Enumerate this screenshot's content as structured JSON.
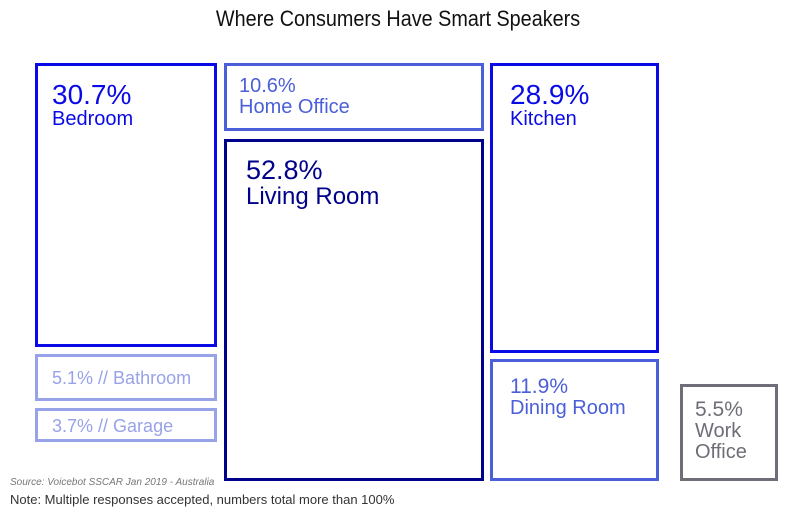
{
  "chart_data": {
    "type": "treemap",
    "title": "Where Consumers Have Smart Speakers",
    "unit": "%",
    "items": [
      {
        "key": "bedroom",
        "value_text": "30.7%",
        "label": "Bedroom",
        "value": 30.7,
        "color": "#0a0ae6"
      },
      {
        "key": "bathroom",
        "value_text": "5.1%",
        "label": "Bathroom",
        "value": 5.1,
        "color": "#98a2e8",
        "inline": true
      },
      {
        "key": "garage",
        "value_text": "3.7%",
        "label": "Garage",
        "value": 3.7,
        "color": "#98a2e8",
        "inline": true
      },
      {
        "key": "home_office",
        "value_text": "10.6%",
        "label": "Home Office",
        "value": 10.6,
        "color": "#4a5fd8"
      },
      {
        "key": "living_room",
        "value_text": "52.8%",
        "label": "Living Room",
        "value": 52.8,
        "color": "#00008b"
      },
      {
        "key": "kitchen",
        "value_text": "28.9%",
        "label": "Kitchen",
        "value": 28.9,
        "color": "#0a0ae6"
      },
      {
        "key": "dining_room",
        "value_text": "11.9%",
        "label": "Dining Room",
        "value": 11.9,
        "color": "#4a5fd8"
      },
      {
        "key": "work_office",
        "value_text": "5.5%",
        "label": "Work\nOffice",
        "value": 5.5,
        "color": "#6e6e78"
      }
    ]
  },
  "source": "Source: Voicebot SSCAR Jan 2019 - Australia",
  "note": "Note: Multiple responses accepted, numbers total more than 100%"
}
